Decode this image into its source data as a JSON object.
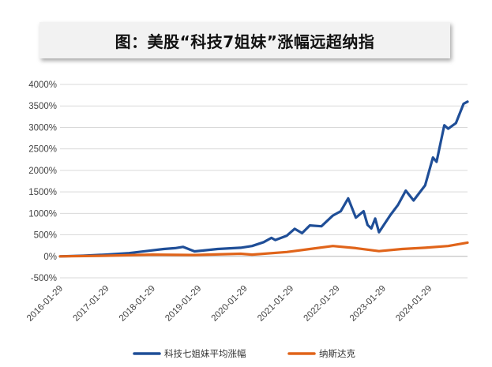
{
  "chart_data": {
    "type": "line",
    "title": "图：美股“科技7姐妹”涨幅远超纳指",
    "xlabel": "",
    "ylabel": "",
    "ylim": [
      -500,
      4000
    ],
    "ytick_values": [
      -500,
      0,
      500,
      1000,
      1500,
      2000,
      2500,
      3000,
      3500,
      4000
    ],
    "ytick_labels": [
      "-500%",
      "0%",
      "500%",
      "1000%",
      "1500%",
      "2000%",
      "2500%",
      "3000%",
      "3500%",
      "4000%"
    ],
    "xlim": [
      "2016-01-29",
      "2024-11-29"
    ],
    "xtick_labels": [
      "2016-01-29",
      "2017-01-29",
      "2018-01-29",
      "2019-01-29",
      "2020-01-29",
      "2021-01-29",
      "2022-01-29",
      "2023-01-29",
      "2024-01-29"
    ],
    "grid": "horizontal",
    "legend_position": "bottom",
    "series": [
      {
        "name": "科技七姐妹平均涨幅",
        "color": "#1f4e97",
        "points": [
          [
            "2016-01-29",
            0
          ],
          [
            "2016-07-29",
            15
          ],
          [
            "2017-01-29",
            40
          ],
          [
            "2017-07-29",
            75
          ],
          [
            "2018-01-29",
            140
          ],
          [
            "2018-04-29",
            170
          ],
          [
            "2018-07-29",
            190
          ],
          [
            "2018-09-29",
            220
          ],
          [
            "2018-12-29",
            115
          ],
          [
            "2019-06-29",
            170
          ],
          [
            "2019-12-29",
            200
          ],
          [
            "2020-03-29",
            240
          ],
          [
            "2020-06-29",
            330
          ],
          [
            "2020-08-29",
            430
          ],
          [
            "2020-09-29",
            380
          ],
          [
            "2020-12-29",
            480
          ],
          [
            "2021-02-29",
            640
          ],
          [
            "2021-04-29",
            540
          ],
          [
            "2021-06-29",
            720
          ],
          [
            "2021-09-29",
            700
          ],
          [
            "2021-12-29",
            950
          ],
          [
            "2022-02-29",
            1050
          ],
          [
            "2022-04-29",
            1350
          ],
          [
            "2022-06-29",
            900
          ],
          [
            "2022-08-29",
            1050
          ],
          [
            "2022-09-29",
            730
          ],
          [
            "2022-10-29",
            650
          ],
          [
            "2022-11-29",
            880
          ],
          [
            "2022-12-29",
            560
          ],
          [
            "2023-03-29",
            960
          ],
          [
            "2023-05-29",
            1200
          ],
          [
            "2023-07-29",
            1530
          ],
          [
            "2023-09-29",
            1300
          ],
          [
            "2023-12-29",
            1650
          ],
          [
            "2024-02-29",
            2300
          ],
          [
            "2024-03-29",
            2200
          ],
          [
            "2024-05-29",
            3050
          ],
          [
            "2024-06-29",
            2970
          ],
          [
            "2024-08-29",
            3100
          ],
          [
            "2024-10-29",
            3550
          ],
          [
            "2024-11-29",
            3600
          ]
        ]
      },
      {
        "name": "纳斯达克",
        "color": "#e0641a",
        "points": [
          [
            "2016-01-29",
            0
          ],
          [
            "2017-01-29",
            15
          ],
          [
            "2018-01-29",
            40
          ],
          [
            "2018-12-29",
            30
          ],
          [
            "2019-12-29",
            60
          ],
          [
            "2020-03-29",
            40
          ],
          [
            "2020-12-29",
            100
          ],
          [
            "2021-06-29",
            170
          ],
          [
            "2021-12-29",
            240
          ],
          [
            "2022-06-29",
            190
          ],
          [
            "2022-12-29",
            120
          ],
          [
            "2023-06-29",
            170
          ],
          [
            "2023-12-29",
            200
          ],
          [
            "2024-06-29",
            240
          ],
          [
            "2024-11-29",
            320
          ]
        ]
      }
    ]
  }
}
